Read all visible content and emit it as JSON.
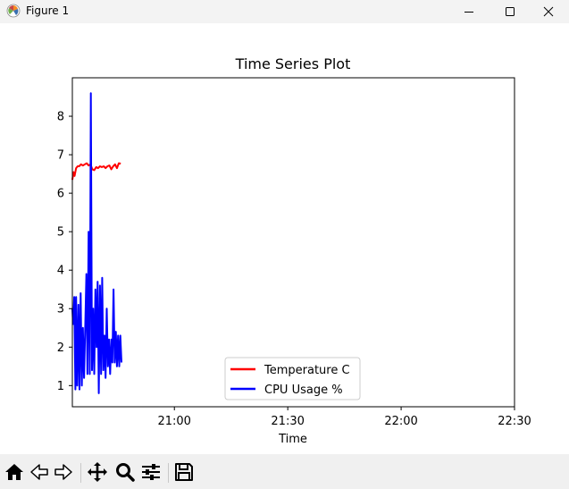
{
  "window": {
    "title": "Figure 1"
  },
  "chart_data": {
    "type": "line",
    "title": "Time Series Plot",
    "xlabel": "Time",
    "ylabel": "",
    "x_tick_labels": [
      "21:00",
      "21:30",
      "22:00",
      "22:30"
    ],
    "x_ticks_minutes": [
      60,
      90,
      120,
      150
    ],
    "xlim_minutes": [
      33,
      150
    ],
    "y_ticks": [
      1,
      2,
      3,
      4,
      5,
      6,
      7,
      8
    ],
    "ylim": [
      0.45,
      9.0
    ],
    "grid": false,
    "legend_location": "lower center",
    "series": [
      {
        "name": "Temperature C",
        "color": "#ff0000",
        "x_minutes": [
          33.0,
          33.3,
          33.6,
          34.0,
          34.4,
          34.8,
          35.3,
          35.8,
          36.3,
          36.8,
          37.3,
          37.8,
          38.3,
          38.8,
          39.3,
          39.8,
          40.3,
          40.8,
          41.3,
          41.8,
          42.3,
          42.8,
          43.3,
          43.8,
          44.3,
          44.8,
          45.3,
          45.8
        ],
        "values": [
          6.35,
          6.55,
          6.45,
          6.65,
          6.7,
          6.7,
          6.75,
          6.72,
          6.75,
          6.78,
          6.72,
          6.75,
          6.62,
          6.6,
          6.68,
          6.65,
          6.7,
          6.68,
          6.7,
          6.65,
          6.7,
          6.72,
          6.62,
          6.7,
          6.75,
          6.65,
          6.78,
          6.77
        ]
      },
      {
        "name": "CPU Usage %",
        "color": "#0000ff",
        "x_minutes": [
          33.0,
          33.2,
          33.5,
          33.8,
          34.0,
          34.3,
          34.6,
          34.9,
          35.2,
          35.5,
          35.8,
          36.1,
          36.4,
          36.7,
          37.0,
          37.3,
          37.6,
          37.9,
          38.2,
          38.5,
          38.8,
          39.1,
          39.4,
          39.7,
          40.0,
          40.3,
          40.6,
          40.9,
          41.2,
          41.5,
          41.8,
          42.1,
          42.4,
          42.7,
          43.0,
          43.3,
          43.6,
          43.9,
          44.2,
          44.5,
          44.8,
          45.1,
          45.4,
          45.7,
          46.0
        ],
        "values": [
          3.0,
          2.6,
          3.3,
          0.9,
          3.3,
          1.0,
          3.1,
          0.9,
          3.4,
          1.0,
          2.5,
          1.2,
          2.5,
          3.9,
          1.3,
          5.0,
          1.3,
          8.6,
          1.4,
          3.0,
          1.3,
          3.5,
          2.0,
          3.7,
          0.8,
          3.6,
          1.3,
          3.8,
          1.4,
          2.3,
          1.2,
          3.0,
          1.5,
          2.2,
          1.3,
          2.2,
          1.6,
          3.5,
          1.6,
          2.4,
          1.5,
          2.3,
          1.5,
          2.3,
          1.6
        ]
      }
    ]
  },
  "toolbar": {
    "items": [
      {
        "id": "home",
        "icon": "home-icon"
      },
      {
        "id": "back",
        "icon": "back-arrow-icon"
      },
      {
        "id": "forward",
        "icon": "forward-arrow-icon"
      },
      {
        "id": "pan",
        "icon": "pan-move-icon"
      },
      {
        "id": "zoom",
        "icon": "zoom-magnifier-icon"
      },
      {
        "id": "configure",
        "icon": "configure-subplots-icon"
      },
      {
        "id": "save",
        "icon": "save-floppy-icon"
      }
    ]
  }
}
